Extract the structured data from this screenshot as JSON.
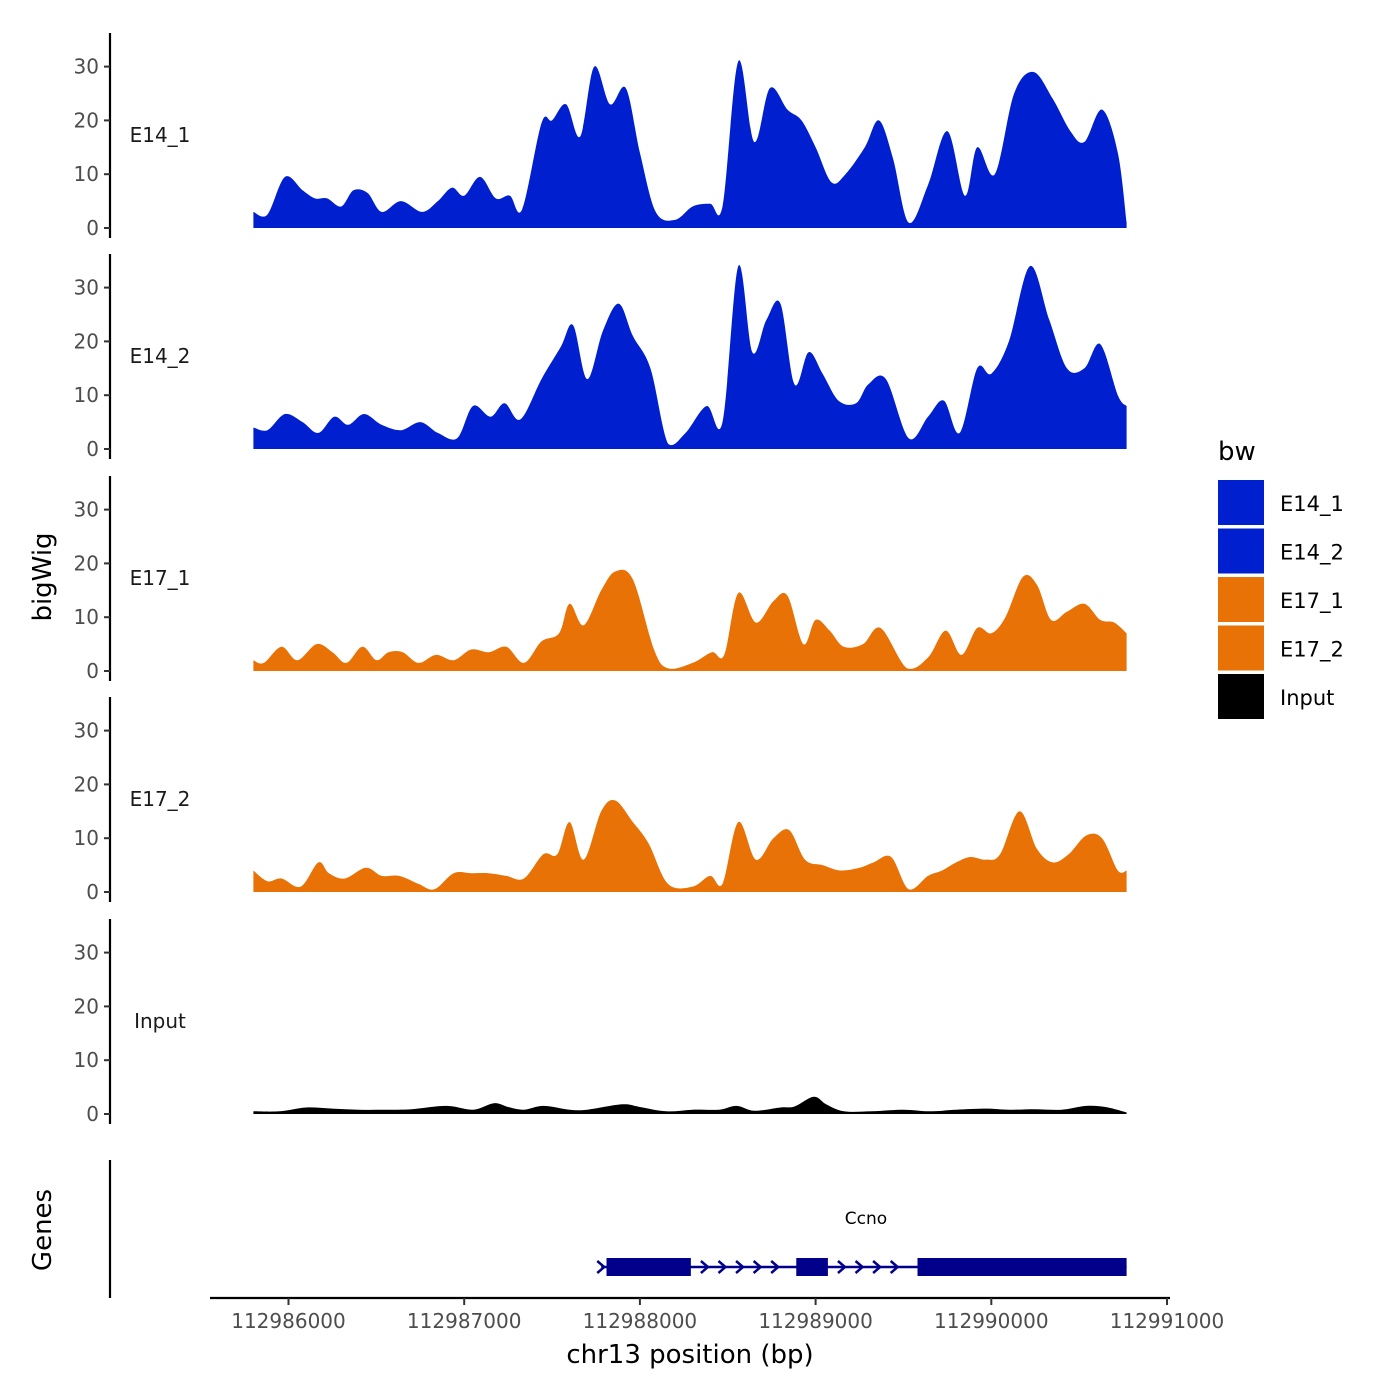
{
  "chart_data": {
    "type": "area",
    "title": "",
    "ylabel": "bigWig",
    "xlabel": "chr13 position (bp)",
    "xlim": [
      112985800,
      112990770
    ],
    "ylim": [
      0,
      36
    ],
    "x_ticks": [
      112986000,
      112987000,
      112988000,
      112989000,
      112990000,
      112991000
    ],
    "x_tick_labels": [
      "112986000",
      "112987000",
      "112988000",
      "112989000",
      "112990000",
      "112991000"
    ],
    "y_ticks": [
      0,
      10,
      20,
      30
    ],
    "y_tick_labels": [
      "0",
      "10",
      "20",
      "30"
    ],
    "legend": {
      "title": "bw",
      "placement": "right",
      "entries": [
        {
          "label": "E14_1",
          "color": "#0020CF"
        },
        {
          "label": "E14_2",
          "color": "#0020CF"
        },
        {
          "label": "E17_1",
          "color": "#E87205"
        },
        {
          "label": "E17_2",
          "color": "#E87205"
        },
        {
          "label": "Input",
          "color": "#000000"
        }
      ]
    },
    "series": [
      {
        "name": "E14_1",
        "color": "#0020CF",
        "points": [
          [
            112985800,
            3
          ],
          [
            112985880,
            2.5
          ],
          [
            112985980,
            9.5
          ],
          [
            112986080,
            7
          ],
          [
            112986150,
            5.5
          ],
          [
            112986220,
            5.5
          ],
          [
            112986300,
            4
          ],
          [
            112986370,
            7
          ],
          [
            112986450,
            6.5
          ],
          [
            112986530,
            3
          ],
          [
            112986640,
            5
          ],
          [
            112986760,
            3
          ],
          [
            112986850,
            5
          ],
          [
            112986930,
            7.5
          ],
          [
            112987000,
            6
          ],
          [
            112987090,
            9.5
          ],
          [
            112987180,
            5.5
          ],
          [
            112987260,
            6
          ],
          [
            112987330,
            3.5
          ],
          [
            112987440,
            19.5
          ],
          [
            112987500,
            20
          ],
          [
            112987580,
            23
          ],
          [
            112987660,
            17
          ],
          [
            112987740,
            30
          ],
          [
            112987830,
            23
          ],
          [
            112987920,
            26
          ],
          [
            112988000,
            14
          ],
          [
            112988090,
            3
          ],
          [
            112988200,
            1.5
          ],
          [
            112988300,
            4
          ],
          [
            112988400,
            4.5
          ],
          [
            112988470,
            4
          ],
          [
            112988560,
            31
          ],
          [
            112988650,
            16
          ],
          [
            112988740,
            26
          ],
          [
            112988840,
            22
          ],
          [
            112988920,
            20
          ],
          [
            112989000,
            15
          ],
          [
            112989090,
            8.5
          ],
          [
            112989170,
            10
          ],
          [
            112989280,
            15
          ],
          [
            112989360,
            20
          ],
          [
            112989440,
            13
          ],
          [
            112989530,
            1
          ],
          [
            112989640,
            8
          ],
          [
            112989750,
            18
          ],
          [
            112989850,
            6
          ],
          [
            112989920,
            15
          ],
          [
            112990020,
            10
          ],
          [
            112990130,
            25
          ],
          [
            112990240,
            29
          ],
          [
            112990350,
            24
          ],
          [
            112990450,
            18
          ],
          [
            112990530,
            16
          ],
          [
            112990630,
            22
          ],
          [
            112990720,
            14
          ],
          [
            112990770,
            1
          ]
        ]
      },
      {
        "name": "E14_2",
        "color": "#0020CF",
        "points": [
          [
            112985800,
            4
          ],
          [
            112985880,
            3.5
          ],
          [
            112985980,
            6.5
          ],
          [
            112986080,
            5
          ],
          [
            112986170,
            3
          ],
          [
            112986260,
            6
          ],
          [
            112986340,
            4.5
          ],
          [
            112986430,
            6.5
          ],
          [
            112986530,
            4.5
          ],
          [
            112986640,
            3.5
          ],
          [
            112986750,
            5
          ],
          [
            112986850,
            3
          ],
          [
            112986960,
            2
          ],
          [
            112987050,
            8
          ],
          [
            112987150,
            6
          ],
          [
            112987230,
            8.5
          ],
          [
            112987320,
            5.5
          ],
          [
            112987440,
            13
          ],
          [
            112987550,
            19
          ],
          [
            112987620,
            23
          ],
          [
            112987700,
            13
          ],
          [
            112987790,
            22
          ],
          [
            112987880,
            27
          ],
          [
            112987960,
            21
          ],
          [
            112988060,
            15
          ],
          [
            112988160,
            1
          ],
          [
            112988260,
            3
          ],
          [
            112988380,
            8
          ],
          [
            112988470,
            5
          ],
          [
            112988560,
            34
          ],
          [
            112988640,
            18
          ],
          [
            112988720,
            24
          ],
          [
            112988800,
            27
          ],
          [
            112988880,
            12
          ],
          [
            112988960,
            18
          ],
          [
            112989040,
            14
          ],
          [
            112989130,
            9
          ],
          [
            112989230,
            8.5
          ],
          [
            112989300,
            12
          ],
          [
            112989400,
            13
          ],
          [
            112989530,
            2
          ],
          [
            112989640,
            6
          ],
          [
            112989730,
            9
          ],
          [
            112989820,
            3
          ],
          [
            112989920,
            15
          ],
          [
            112990000,
            14
          ],
          [
            112990100,
            20
          ],
          [
            112990220,
            34
          ],
          [
            112990330,
            24
          ],
          [
            112990430,
            15
          ],
          [
            112990530,
            15
          ],
          [
            112990620,
            19.5
          ],
          [
            112990720,
            10
          ],
          [
            112990770,
            8
          ]
        ]
      },
      {
        "name": "E17_1",
        "color": "#E87205",
        "points": [
          [
            112985800,
            2
          ],
          [
            112985860,
            1.5
          ],
          [
            112985960,
            4.5
          ],
          [
            112986050,
            2
          ],
          [
            112986160,
            5
          ],
          [
            112986250,
            3.5
          ],
          [
            112986330,
            1.5
          ],
          [
            112986420,
            4.5
          ],
          [
            112986500,
            2
          ],
          [
            112986570,
            3.5
          ],
          [
            112986650,
            3.5
          ],
          [
            112986740,
            1.5
          ],
          [
            112986840,
            3
          ],
          [
            112986940,
            2
          ],
          [
            112987040,
            4
          ],
          [
            112987140,
            3.5
          ],
          [
            112987240,
            4.5
          ],
          [
            112987340,
            1.5
          ],
          [
            112987440,
            5.5
          ],
          [
            112987540,
            7
          ],
          [
            112987600,
            12.5
          ],
          [
            112987680,
            8.5
          ],
          [
            112987780,
            15
          ],
          [
            112987860,
            18.5
          ],
          [
            112987960,
            17
          ],
          [
            112988080,
            4
          ],
          [
            112988160,
            0.5
          ],
          [
            112988300,
            1.5
          ],
          [
            112988410,
            3.5
          ],
          [
            112988480,
            3
          ],
          [
            112988560,
            14.5
          ],
          [
            112988660,
            9
          ],
          [
            112988760,
            13
          ],
          [
            112988840,
            14
          ],
          [
            112988930,
            5
          ],
          [
            112989000,
            9.5
          ],
          [
            112989080,
            7.5
          ],
          [
            112989160,
            4.5
          ],
          [
            112989270,
            5
          ],
          [
            112989370,
            8
          ],
          [
            112989520,
            0.5
          ],
          [
            112989640,
            2.5
          ],
          [
            112989740,
            7.5
          ],
          [
            112989830,
            3
          ],
          [
            112989920,
            8
          ],
          [
            112990000,
            7
          ],
          [
            112990080,
            10
          ],
          [
            112990180,
            17.5
          ],
          [
            112990260,
            16
          ],
          [
            112990340,
            9.5
          ],
          [
            112990430,
            11
          ],
          [
            112990530,
            12.5
          ],
          [
            112990620,
            9.5
          ],
          [
            112990700,
            9
          ],
          [
            112990770,
            7
          ]
        ]
      },
      {
        "name": "E17_2",
        "color": "#E87205",
        "points": [
          [
            112985800,
            4
          ],
          [
            112985880,
            2
          ],
          [
            112985960,
            2.5
          ],
          [
            112986070,
            1
          ],
          [
            112986170,
            5.5
          ],
          [
            112986230,
            3.5
          ],
          [
            112986320,
            2.5
          ],
          [
            112986440,
            4.5
          ],
          [
            112986530,
            3
          ],
          [
            112986630,
            3
          ],
          [
            112986740,
            1.5
          ],
          [
            112986830,
            0.5
          ],
          [
            112986940,
            3.5
          ],
          [
            112987040,
            3.5
          ],
          [
            112987140,
            3.5
          ],
          [
            112987240,
            3
          ],
          [
            112987340,
            2.5
          ],
          [
            112987450,
            7
          ],
          [
            112987530,
            7
          ],
          [
            112987600,
            13
          ],
          [
            112987680,
            6
          ],
          [
            112987780,
            15
          ],
          [
            112987860,
            17
          ],
          [
            112987960,
            13
          ],
          [
            112988050,
            9
          ],
          [
            112988160,
            1.5
          ],
          [
            112988300,
            1
          ],
          [
            112988400,
            3
          ],
          [
            112988470,
            1.5
          ],
          [
            112988560,
            13
          ],
          [
            112988660,
            6
          ],
          [
            112988760,
            10
          ],
          [
            112988850,
            11.5
          ],
          [
            112988940,
            6
          ],
          [
            112989040,
            5
          ],
          [
            112989140,
            4
          ],
          [
            112989250,
            4.5
          ],
          [
            112989330,
            5.5
          ],
          [
            112989430,
            6.5
          ],
          [
            112989530,
            0.5
          ],
          [
            112989640,
            3
          ],
          [
            112989720,
            4
          ],
          [
            112989800,
            5.5
          ],
          [
            112989880,
            6.5
          ],
          [
            112989970,
            6
          ],
          [
            112990050,
            7
          ],
          [
            112990160,
            15
          ],
          [
            112990260,
            8
          ],
          [
            112990350,
            5.5
          ],
          [
            112990440,
            7
          ],
          [
            112990540,
            10.5
          ],
          [
            112990630,
            10
          ],
          [
            112990720,
            4
          ],
          [
            112990770,
            4
          ]
        ]
      },
      {
        "name": "Input",
        "color": "#000000",
        "points": [
          [
            112985800,
            0.5
          ],
          [
            112985950,
            0.5
          ],
          [
            112986100,
            1.2
          ],
          [
            112986250,
            1
          ],
          [
            112986400,
            0.8
          ],
          [
            112986550,
            0.8
          ],
          [
            112986700,
            0.9
          ],
          [
            112986900,
            1.5
          ],
          [
            112987050,
            0.8
          ],
          [
            112987170,
            2
          ],
          [
            112987250,
            1.3
          ],
          [
            112987340,
            0.8
          ],
          [
            112987450,
            1.5
          ],
          [
            112987600,
            0.8
          ],
          [
            112987700,
            0.8
          ],
          [
            112987900,
            1.8
          ],
          [
            112988000,
            1.3
          ],
          [
            112988150,
            0.5
          ],
          [
            112988300,
            0.8
          ],
          [
            112988450,
            0.8
          ],
          [
            112988550,
            1.5
          ],
          [
            112988650,
            0.6
          ],
          [
            112988800,
            1.2
          ],
          [
            112988880,
            1.4
          ],
          [
            112988990,
            3.2
          ],
          [
            112989060,
            1.8
          ],
          [
            112989160,
            0.5
          ],
          [
            112989320,
            0.5
          ],
          [
            112989500,
            0.8
          ],
          [
            112989650,
            0.5
          ],
          [
            112989800,
            0.8
          ],
          [
            112989970,
            1
          ],
          [
            112990100,
            0.8
          ],
          [
            112990250,
            0.9
          ],
          [
            112990400,
            0.8
          ],
          [
            112990540,
            1.5
          ],
          [
            112990650,
            1.3
          ],
          [
            112990770,
            0.3
          ]
        ]
      }
    ],
    "genes": {
      "title": "Genes",
      "gene": {
        "name": "Ccno",
        "strand": "+",
        "color": "#00008B",
        "start": 112987780,
        "end": 112990770,
        "exons": [
          [
            112987810,
            112988290
          ],
          [
            112988890,
            112989070
          ],
          [
            112989580,
            112990770
          ]
        ]
      }
    }
  }
}
